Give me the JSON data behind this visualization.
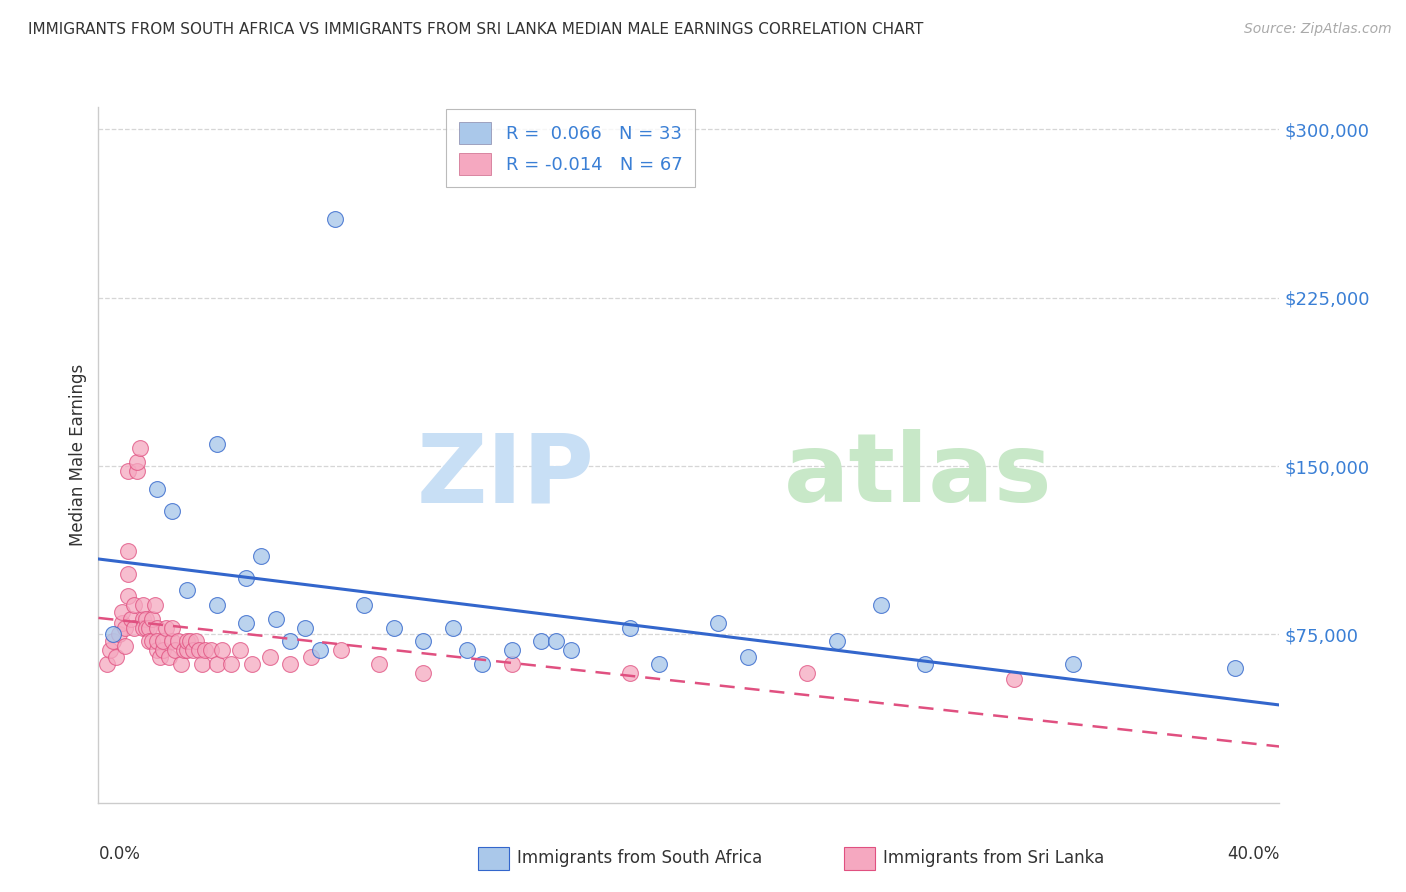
{
  "title": "IMMIGRANTS FROM SOUTH AFRICA VS IMMIGRANTS FROM SRI LANKA MEDIAN MALE EARNINGS CORRELATION CHART",
  "source": "Source: ZipAtlas.com",
  "ylabel": "Median Male Earnings",
  "xlim": [
    0.0,
    0.4
  ],
  "ylim": [
    0,
    310000
  ],
  "yticks": [
    75000,
    150000,
    225000,
    300000
  ],
  "ytick_labels": [
    "$75,000",
    "$150,000",
    "$225,000",
    "$300,000"
  ],
  "legend_r1": "R =  0.066   N = 33",
  "legend_r2": "R = -0.014   N = 67",
  "color_sa": "#aac8ea",
  "color_sl": "#f5a8c0",
  "trendline_sa": "#3366cc",
  "trendline_sl": "#e05080",
  "watermark_zip": "ZIP",
  "watermark_atlas": "atlas",
  "sa_x": [
    0.005,
    0.02,
    0.025,
    0.03,
    0.04,
    0.04,
    0.05,
    0.05,
    0.055,
    0.06,
    0.065,
    0.07,
    0.075,
    0.08,
    0.09,
    0.1,
    0.11,
    0.12,
    0.125,
    0.13,
    0.14,
    0.15,
    0.155,
    0.16,
    0.18,
    0.19,
    0.21,
    0.22,
    0.25,
    0.265,
    0.28,
    0.33,
    0.385
  ],
  "sa_y": [
    75000,
    140000,
    130000,
    95000,
    88000,
    160000,
    80000,
    100000,
    110000,
    82000,
    72000,
    78000,
    68000,
    260000,
    88000,
    78000,
    72000,
    78000,
    68000,
    62000,
    68000,
    72000,
    72000,
    68000,
    78000,
    62000,
    80000,
    65000,
    72000,
    88000,
    62000,
    62000,
    60000
  ],
  "sl_x": [
    0.003,
    0.004,
    0.005,
    0.006,
    0.007,
    0.008,
    0.008,
    0.009,
    0.009,
    0.01,
    0.01,
    0.01,
    0.01,
    0.011,
    0.012,
    0.012,
    0.013,
    0.013,
    0.014,
    0.015,
    0.015,
    0.015,
    0.016,
    0.016,
    0.017,
    0.017,
    0.018,
    0.018,
    0.019,
    0.02,
    0.02,
    0.02,
    0.021,
    0.022,
    0.022,
    0.023,
    0.024,
    0.025,
    0.025,
    0.026,
    0.027,
    0.028,
    0.029,
    0.03,
    0.03,
    0.031,
    0.032,
    0.033,
    0.034,
    0.035,
    0.036,
    0.038,
    0.04,
    0.042,
    0.045,
    0.048,
    0.052,
    0.058,
    0.065,
    0.072,
    0.082,
    0.095,
    0.11,
    0.14,
    0.18,
    0.24,
    0.31
  ],
  "sl_y": [
    62000,
    68000,
    72000,
    65000,
    75000,
    80000,
    85000,
    78000,
    70000,
    92000,
    102000,
    112000,
    148000,
    82000,
    78000,
    88000,
    148000,
    152000,
    158000,
    82000,
    78000,
    88000,
    82000,
    78000,
    78000,
    72000,
    72000,
    82000,
    88000,
    78000,
    68000,
    72000,
    65000,
    68000,
    72000,
    78000,
    65000,
    72000,
    78000,
    68000,
    72000,
    62000,
    68000,
    68000,
    72000,
    72000,
    68000,
    72000,
    68000,
    62000,
    68000,
    68000,
    62000,
    68000,
    62000,
    68000,
    62000,
    65000,
    62000,
    65000,
    68000,
    62000,
    58000,
    62000,
    58000,
    58000,
    55000
  ]
}
